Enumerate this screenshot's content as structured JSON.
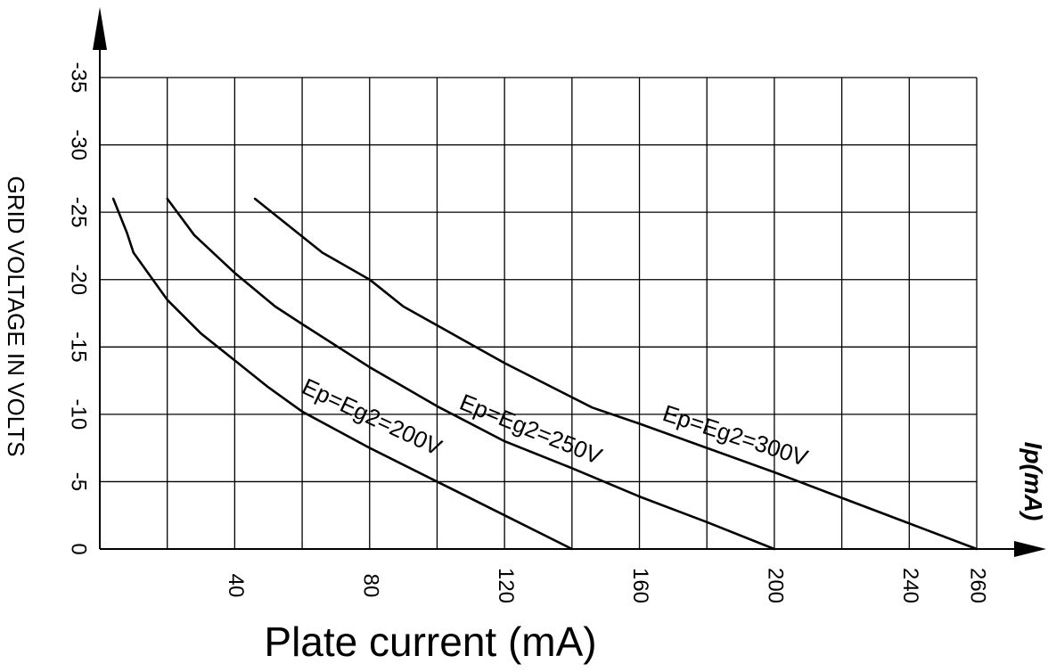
{
  "chart_data": {
    "type": "line",
    "title": "",
    "xlabel": "Plate current (mA)",
    "ylabel": "GRID VOLTAGE IN VOLTS",
    "x_axis_end_label": "Ip(mA)",
    "xlim": [
      0,
      260
    ],
    "ylim": [
      0,
      -35
    ],
    "x_tick_labels": [
      "40",
      "80",
      "120",
      "160",
      "200",
      "240",
      "260"
    ],
    "x_tick_values": [
      40,
      80,
      120,
      160,
      200,
      240,
      260
    ],
    "y_tick_labels": [
      "0",
      "-5",
      "-10",
      "-15",
      "-20",
      "-25",
      "-30",
      "-35"
    ],
    "y_tick_values": [
      0,
      -5,
      -10,
      -15,
      -20,
      -25,
      -30,
      -35
    ],
    "grid": true,
    "series": [
      {
        "name": "Ep=Eg2=200V",
        "x": [
          4,
          8,
          10,
          20,
          30,
          40,
          50,
          60,
          80,
          100,
          120,
          140
        ],
        "y": [
          -26,
          -23.5,
          -22,
          -18.5,
          -16,
          -14,
          -12,
          -10.2,
          -7.5,
          -5,
          -2.5,
          0
        ]
      },
      {
        "name": "Ep=Eg2=250V",
        "x": [
          20,
          28,
          40,
          52,
          60,
          80,
          100,
          120,
          140,
          160,
          180,
          200
        ],
        "y": [
          -26,
          -23.3,
          -20.5,
          -18,
          -16.7,
          -13.5,
          -10.6,
          -8,
          -6,
          -3.9,
          -2,
          0
        ]
      },
      {
        "name": "Ep=Eg2=300V",
        "x": [
          46,
          60,
          66,
          80,
          90,
          120,
          146,
          160,
          180,
          200,
          220,
          240,
          260
        ],
        "y": [
          -26,
          -23.2,
          -22,
          -20,
          -18,
          -13.8,
          -10.5,
          -9.3,
          -7.5,
          -5.7,
          -3.8,
          -1.9,
          0
        ]
      }
    ]
  }
}
